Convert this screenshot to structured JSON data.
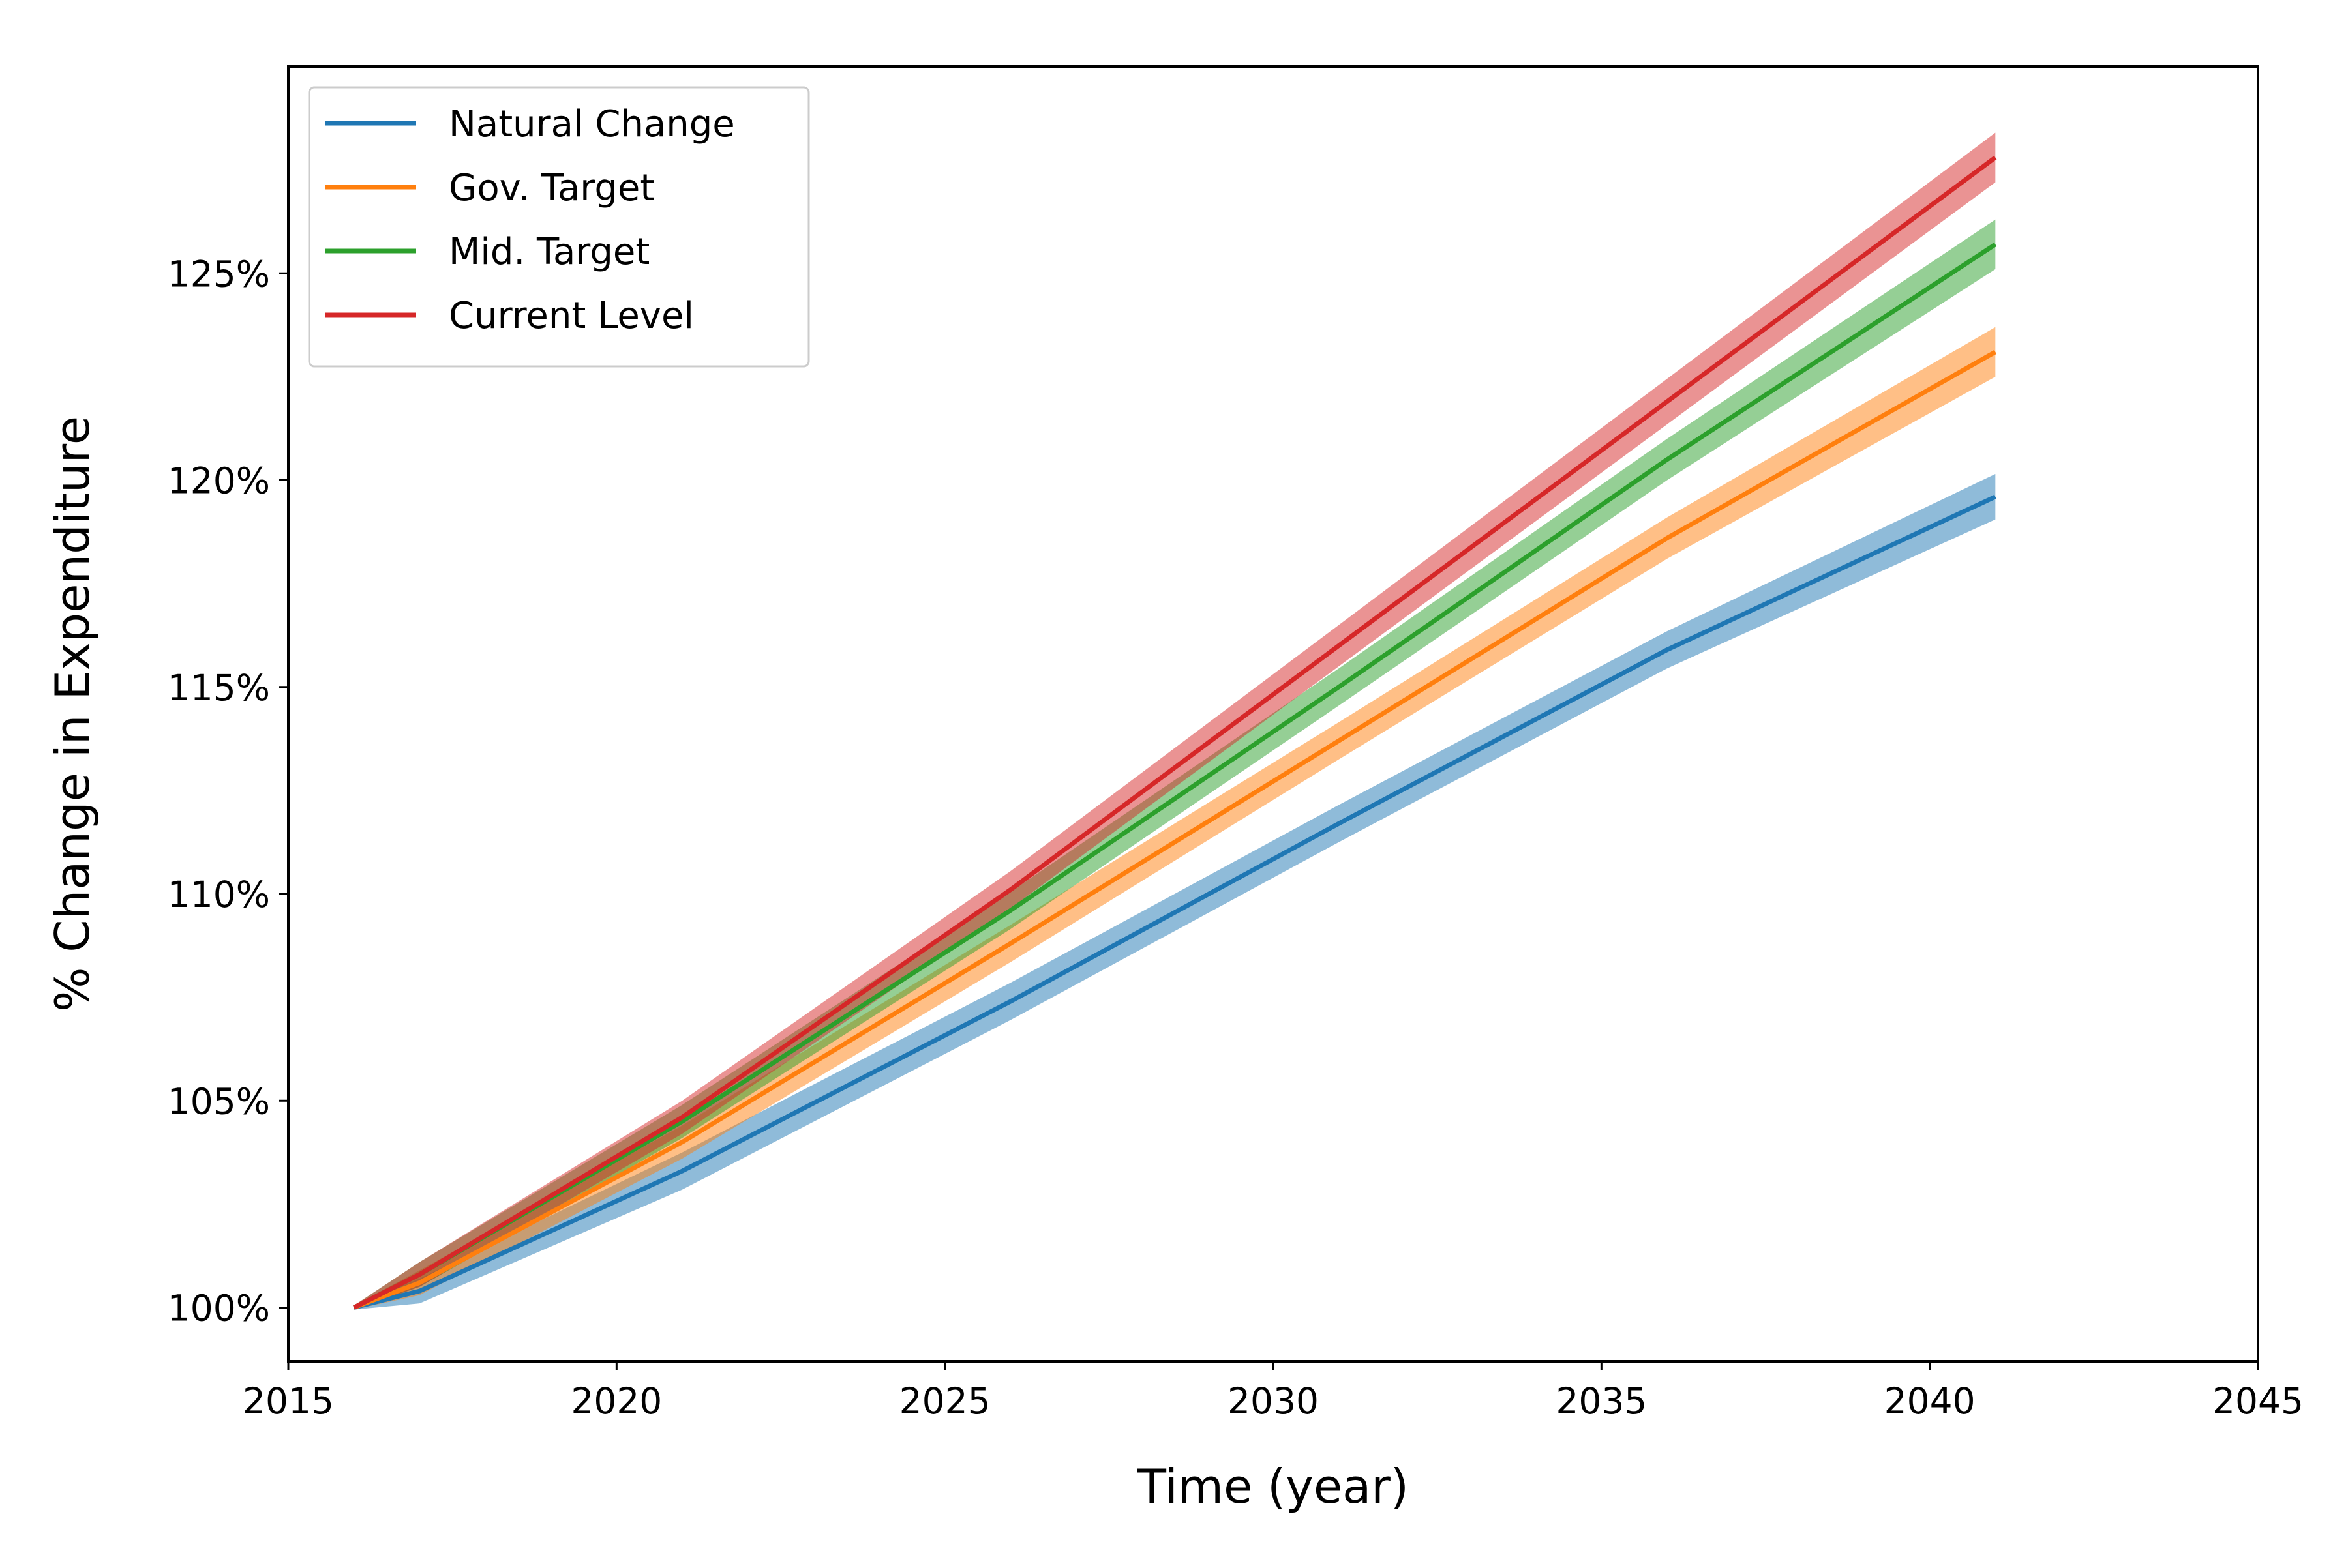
{
  "chart_data": {
    "type": "line",
    "title": "",
    "xlabel": "Time (year)",
    "ylabel": "% Change in Expenditure",
    "xlim": [
      2015,
      2045
    ],
    "ylim": [
      98.7,
      130.0
    ],
    "xticks": [
      2015,
      2020,
      2025,
      2030,
      2035,
      2040,
      2045
    ],
    "xtick_labels": [
      "2015",
      "2020",
      "2025",
      "2030",
      "2035",
      "2040",
      "2045"
    ],
    "yticks": [
      100,
      105,
      110,
      115,
      120,
      125
    ],
    "ytick_labels": [
      "100%",
      "105%",
      "110%",
      "115%",
      "120%",
      "125%"
    ],
    "grid": false,
    "legend_position": "top-left",
    "uncertainty_bands": true,
    "x": [
      2016,
      2017,
      2021,
      2026,
      2031,
      2036,
      2041
    ],
    "series": [
      {
        "name": "Natural Change",
        "color": "#1f77b4",
        "values": [
          100.0,
          100.4,
          103.3,
          107.4,
          111.7,
          115.9,
          119.6
        ],
        "band_halfwidth": [
          0.05,
          0.3,
          0.45,
          0.45,
          0.45,
          0.45,
          0.55
        ]
      },
      {
        "name": "Gov. Target",
        "color": "#ff7f0e",
        "values": [
          100.0,
          100.6,
          104.0,
          108.8,
          113.7,
          118.6,
          123.1
        ],
        "band_halfwidth": [
          0.05,
          0.3,
          0.4,
          0.45,
          0.45,
          0.5,
          0.6
        ]
      },
      {
        "name": "Mid. Target",
        "color": "#2ca02c",
        "values": [
          100.0,
          100.8,
          104.5,
          109.6,
          115.0,
          120.5,
          125.7
        ],
        "band_halfwidth": [
          0.05,
          0.3,
          0.4,
          0.45,
          0.45,
          0.5,
          0.6
        ]
      },
      {
        "name": "Current Level",
        "color": "#d62728",
        "values": [
          100.0,
          100.8,
          104.6,
          110.1,
          116.0,
          121.9,
          127.8
        ],
        "band_halfwidth": [
          0.05,
          0.3,
          0.4,
          0.45,
          0.5,
          0.55,
          0.6
        ]
      }
    ]
  }
}
